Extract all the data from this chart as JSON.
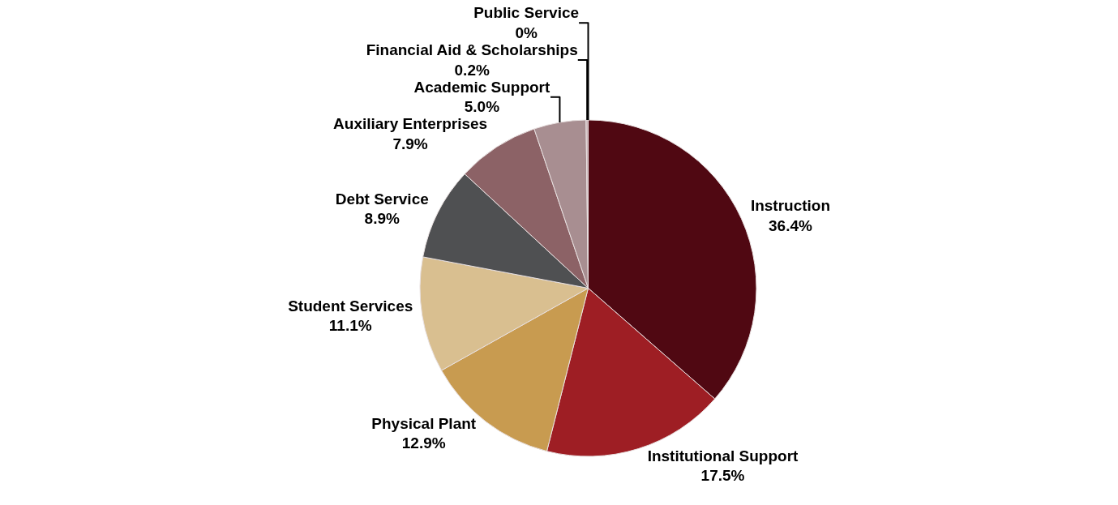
{
  "chart_data": {
    "type": "pie",
    "categories": [
      "Instruction",
      "Institutional Support",
      "Physical Plant",
      "Student Services",
      "Debt Service",
      "Auxiliary Enterprises",
      "Academic Support",
      "Financial Aid & Scholarships",
      "Public Service"
    ],
    "values": [
      36.4,
      17.5,
      12.9,
      11.1,
      8.9,
      7.9,
      5.0,
      0.2,
      0
    ],
    "value_labels": [
      "36.4%",
      "17.5%",
      "12.9%",
      "11.1%",
      "8.9%",
      "7.9%",
      "5.0%",
      "0.2%",
      "0%"
    ],
    "colors": [
      "#500812",
      "#9e1e24",
      "#c89b50",
      "#d9bf90",
      "#4f5052",
      "#8c6266",
      "#a88e91",
      "#c8b0b4",
      "#d8d0d2"
    ],
    "legend": false
  }
}
